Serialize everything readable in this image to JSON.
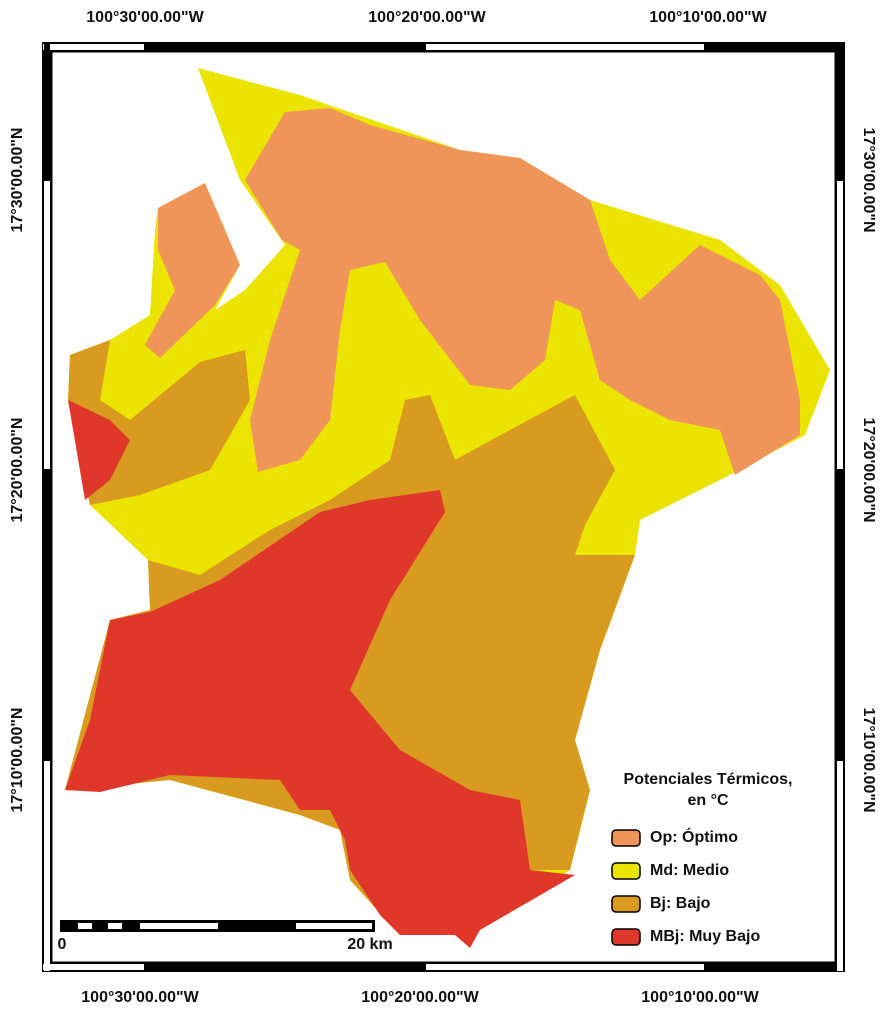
{
  "coordinates": {
    "top": [
      "100°30'00.00\"W",
      "100°20'00.00\"W",
      "100°10'00.00\"W"
    ],
    "bottom": [
      "100°30'00.00\"W",
      "100°20'00.00\"W",
      "100°10'00.00\"W"
    ],
    "left": [
      "17°30'00.00\"N",
      "17°20'00.00\"N",
      "17°10'00.00\"N"
    ],
    "right": [
      "17°30'00.00\"N",
      "17°20'00.00\"N",
      "17°10'00.00\"N"
    ]
  },
  "legend": {
    "title": [
      "Potenciales Térmicos,",
      "en °C"
    ],
    "items": [
      {
        "label": "Op: Óptimo",
        "color": "#f0955a"
      },
      {
        "label": "Md: Medio",
        "color": "#ebe300"
      },
      {
        "label": "Bj: Bajo",
        "color": "#d99a20"
      },
      {
        "label": "MBj: Muy Bajo",
        "color": "#e0372b"
      }
    ]
  },
  "scale_bar": {
    "start": "0",
    "end": "20 km"
  }
}
